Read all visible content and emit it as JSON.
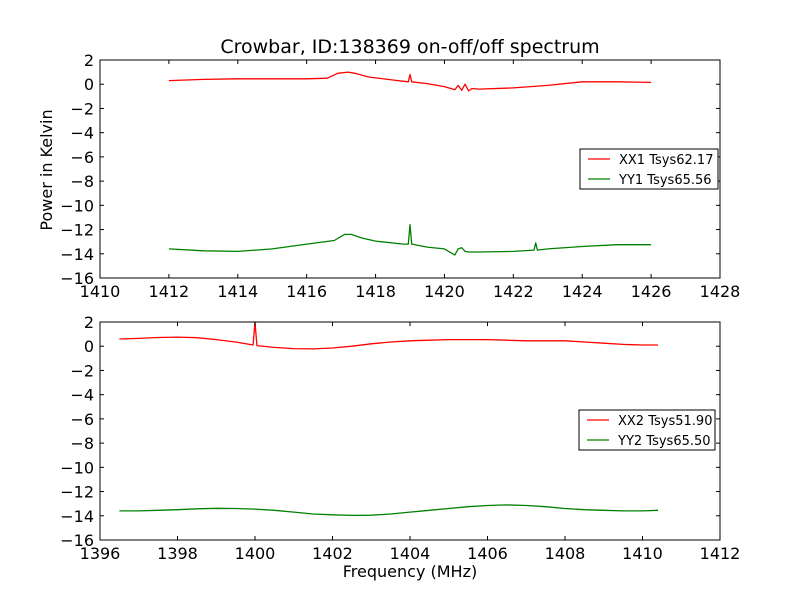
{
  "chart_data": [
    {
      "type": "line",
      "title": "Crowbar, ID:138369 on-off/off spectrum",
      "xlabel": "",
      "ylabel": "Power in Kelvin",
      "xlim": [
        1410,
        1428
      ],
      "ylim": [
        -16,
        2
      ],
      "xticks": [
        1410,
        1412,
        1414,
        1416,
        1418,
        1420,
        1422,
        1424,
        1426,
        1428
      ],
      "yticks": [
        2,
        0,
        -2,
        -4,
        -6,
        -8,
        -10,
        -12,
        -14,
        -16
      ],
      "grid": false,
      "legend_position": "center-right",
      "series": [
        {
          "name": "XX1 Tsys62.17",
          "color": "#ff0000",
          "x": [
            1412.0,
            1413.0,
            1414.0,
            1415.0,
            1416.0,
            1416.6,
            1416.9,
            1417.2,
            1417.4,
            1417.8,
            1418.5,
            1418.95,
            1419.0,
            1419.05,
            1419.5,
            1420.0,
            1420.3,
            1420.4,
            1420.5,
            1420.6,
            1420.7,
            1420.8,
            1421.0,
            1422.0,
            1423.0,
            1424.0,
            1425.0,
            1426.0
          ],
          "y": [
            0.3,
            0.4,
            0.45,
            0.45,
            0.45,
            0.5,
            0.9,
            1.0,
            0.9,
            0.6,
            0.35,
            0.2,
            0.8,
            0.2,
            0.05,
            -0.2,
            -0.45,
            -0.1,
            -0.5,
            0.0,
            -0.55,
            -0.35,
            -0.4,
            -0.3,
            -0.1,
            0.2,
            0.2,
            0.15
          ]
        },
        {
          "name": "YY1 Tsys65.56",
          "color": "#008000",
          "x": [
            1412.0,
            1413.0,
            1414.0,
            1415.0,
            1416.0,
            1416.8,
            1417.1,
            1417.3,
            1417.6,
            1418.0,
            1418.8,
            1418.95,
            1419.0,
            1419.05,
            1419.5,
            1420.0,
            1420.3,
            1420.4,
            1420.5,
            1420.6,
            1420.7,
            1421.0,
            1422.0,
            1422.6,
            1422.65,
            1422.7,
            1423.0,
            1424.0,
            1425.0,
            1426.0
          ],
          "y": [
            -13.6,
            -13.75,
            -13.8,
            -13.6,
            -13.2,
            -12.9,
            -12.4,
            -12.4,
            -12.7,
            -12.95,
            -13.2,
            -13.2,
            -11.6,
            -13.2,
            -13.45,
            -13.6,
            -14.1,
            -13.6,
            -13.5,
            -13.8,
            -13.85,
            -13.85,
            -13.8,
            -13.7,
            -13.1,
            -13.7,
            -13.6,
            -13.4,
            -13.25,
            -13.25
          ]
        }
      ]
    },
    {
      "type": "line",
      "title": "",
      "xlabel": "Frequency (MHz)",
      "ylabel": "",
      "xlim": [
        1396,
        1412
      ],
      "ylim": [
        -16,
        2
      ],
      "xticks": [
        1396,
        1398,
        1400,
        1402,
        1404,
        1406,
        1408,
        1410,
        1412
      ],
      "yticks": [
        2,
        0,
        -2,
        -4,
        -6,
        -8,
        -10,
        -12,
        -14,
        -16
      ],
      "grid": false,
      "legend_position": "center-right",
      "series": [
        {
          "name": "XX2 Tsys51.90",
          "color": "#ff0000",
          "x": [
            1396.5,
            1397.0,
            1397.5,
            1398.0,
            1398.5,
            1399.0,
            1399.5,
            1399.95,
            1400.0,
            1400.05,
            1400.5,
            1401.0,
            1401.5,
            1402.0,
            1402.5,
            1403.0,
            1403.5,
            1404.0,
            1404.5,
            1405.0,
            1405.5,
            1406.0,
            1406.5,
            1407.0,
            1407.5,
            1408.0,
            1408.5,
            1409.0,
            1409.5,
            1410.0,
            1410.4
          ],
          "y": [
            0.6,
            0.65,
            0.72,
            0.75,
            0.7,
            0.55,
            0.35,
            0.1,
            2.0,
            0.05,
            -0.1,
            -0.2,
            -0.22,
            -0.15,
            0.0,
            0.2,
            0.35,
            0.45,
            0.5,
            0.55,
            0.55,
            0.55,
            0.5,
            0.45,
            0.45,
            0.45,
            0.35,
            0.25,
            0.15,
            0.1,
            0.1
          ]
        },
        {
          "name": "YY2 Tsys65.50",
          "color": "#008000",
          "x": [
            1396.5,
            1397.0,
            1397.5,
            1398.0,
            1398.5,
            1399.0,
            1399.5,
            1400.0,
            1400.5,
            1401.0,
            1401.5,
            1402.0,
            1402.5,
            1403.0,
            1403.5,
            1404.0,
            1404.5,
            1405.0,
            1405.5,
            1406.0,
            1406.5,
            1407.0,
            1407.5,
            1408.0,
            1408.5,
            1409.0,
            1409.5,
            1410.0,
            1410.4
          ],
          "y": [
            -13.6,
            -13.6,
            -13.55,
            -13.5,
            -13.42,
            -13.38,
            -13.4,
            -13.45,
            -13.55,
            -13.7,
            -13.85,
            -13.92,
            -13.97,
            -13.95,
            -13.85,
            -13.7,
            -13.55,
            -13.4,
            -13.25,
            -13.15,
            -13.1,
            -13.15,
            -13.25,
            -13.4,
            -13.5,
            -13.55,
            -13.6,
            -13.6,
            -13.55
          ]
        }
      ]
    }
  ]
}
